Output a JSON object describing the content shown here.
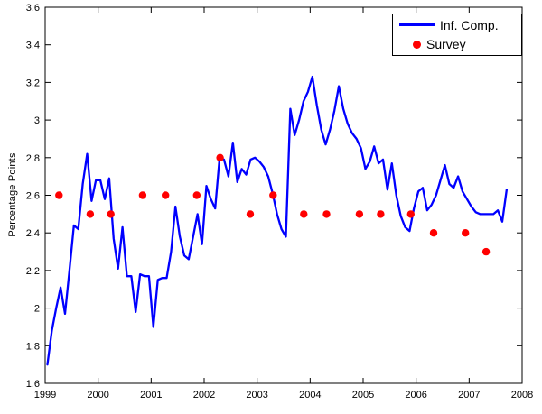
{
  "figure": {
    "background": "#ffffff",
    "axis_color": "#000000",
    "tick_label_color": "#000000"
  },
  "chart_data": {
    "type": "line",
    "title": "",
    "xlabel": "",
    "ylabel": "Percentage Points",
    "xlim": [
      1999,
      2008
    ],
    "ylim": [
      1.6,
      3.6
    ],
    "xticks": [
      1999,
      2000,
      2001,
      2002,
      2003,
      2004,
      2005,
      2006,
      2007,
      2008
    ],
    "xtick_labels": [
      "1999",
      "2000",
      "2001",
      "2002",
      "2003",
      "2004",
      "2005",
      "2006",
      "2007",
      "2008"
    ],
    "yticks": [
      1.6,
      1.8,
      2.0,
      2.2,
      2.4,
      2.6,
      2.8,
      3.0,
      3.2,
      3.4,
      3.6
    ],
    "ytick_labels": [
      "1.6",
      "1.8",
      "2",
      "2.2",
      "2.4",
      "2.6",
      "2.8",
      "3",
      "3.2",
      "3.4",
      "3.6"
    ],
    "grid": false,
    "legend": {
      "position": "top-right",
      "entries": [
        {
          "label": "Inf. Comp.",
          "type": "line",
          "color": "#0000ff"
        },
        {
          "label": "Survey",
          "type": "dot",
          "color": "#ff0000"
        }
      ]
    },
    "series": [
      {
        "name": "Inf. Comp.",
        "type": "line",
        "color": "#0000ff",
        "line_width": 2.3,
        "x_start": 1999.042,
        "x_step": 0.083333,
        "values": [
          1.7,
          1.88,
          2.0,
          2.11,
          1.97,
          2.2,
          2.44,
          2.42,
          2.66,
          2.82,
          2.57,
          2.68,
          2.68,
          2.58,
          2.69,
          2.37,
          2.21,
          2.43,
          2.17,
          2.17,
          1.98,
          2.18,
          2.17,
          2.17,
          1.9,
          2.15,
          2.16,
          2.16,
          2.3,
          2.54,
          2.38,
          2.28,
          2.26,
          2.38,
          2.5,
          2.34,
          2.65,
          2.58,
          2.53,
          2.8,
          2.79,
          2.7,
          2.88,
          2.67,
          2.74,
          2.71,
          2.79,
          2.8,
          2.78,
          2.75,
          2.7,
          2.61,
          2.5,
          2.42,
          2.38,
          3.06,
          2.92,
          3.0,
          3.1,
          3.15,
          3.23,
          3.08,
          2.95,
          2.87,
          2.95,
          3.05,
          3.18,
          3.06,
          2.98,
          2.93,
          2.9,
          2.85,
          2.74,
          2.78,
          2.86,
          2.77,
          2.79,
          2.63,
          2.77,
          2.6,
          2.49,
          2.43,
          2.41,
          2.53,
          2.62,
          2.64,
          2.52,
          2.55,
          2.6,
          2.68,
          2.76,
          2.66,
          2.64,
          2.7,
          2.62,
          2.58,
          2.54,
          2.51,
          2.5,
          2.5,
          2.5,
          2.5,
          2.52,
          2.46,
          2.63
        ]
      },
      {
        "name": "Survey",
        "type": "scatter",
        "color": "#ff0000",
        "marker_radius": 4.2,
        "points": [
          [
            1999.26,
            2.6
          ],
          [
            1999.85,
            2.5
          ],
          [
            2000.24,
            2.5
          ],
          [
            2000.84,
            2.6
          ],
          [
            2001.27,
            2.6
          ],
          [
            2001.86,
            2.6
          ],
          [
            2002.3,
            2.8
          ],
          [
            2002.87,
            2.5
          ],
          [
            2003.3,
            2.6
          ],
          [
            2003.88,
            2.5
          ],
          [
            2004.31,
            2.5
          ],
          [
            2004.93,
            2.5
          ],
          [
            2005.33,
            2.5
          ],
          [
            2005.9,
            2.5
          ],
          [
            2006.33,
            2.4
          ],
          [
            2006.93,
            2.4
          ],
          [
            2007.32,
            2.3
          ]
        ]
      }
    ]
  }
}
